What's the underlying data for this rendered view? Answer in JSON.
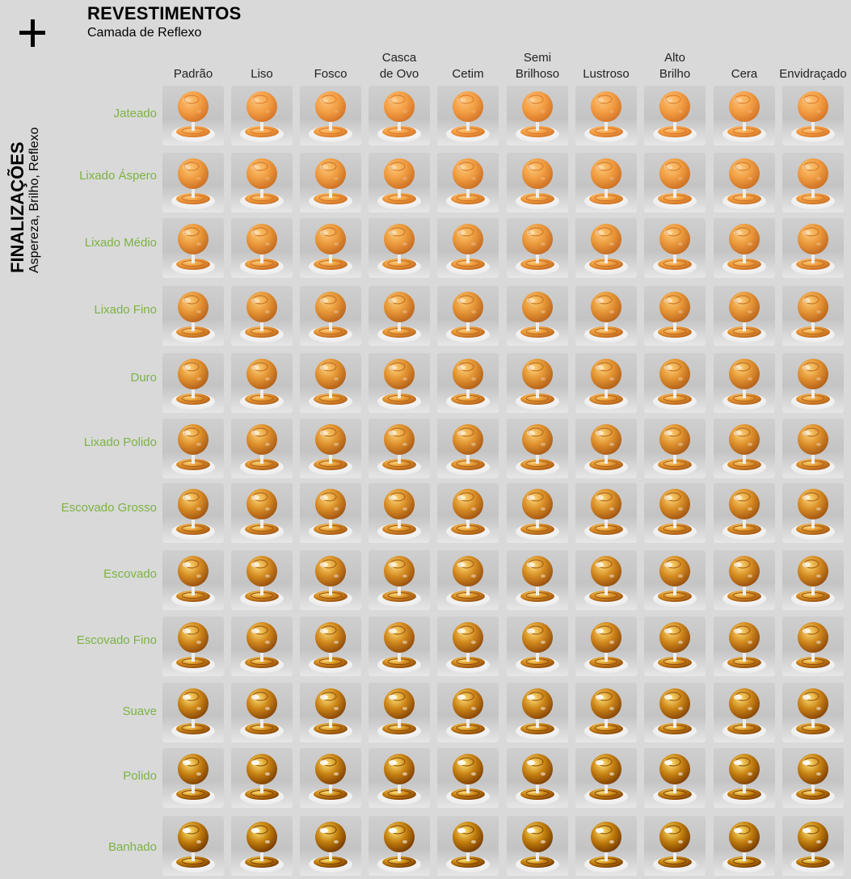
{
  "header": {
    "icon": "plus-icon",
    "title": "REVESTIMENTOS",
    "subtitle": "Camada de Reflexo"
  },
  "side": {
    "title": "FINALIZAÇÕES",
    "subtitle": "Aspereza, Brilho, Reflexo"
  },
  "columns": [
    "Padrão",
    "Liso",
    "Fosco",
    "Casca\nde Ovo",
    "Cetim",
    "Semi\nBrilhoso",
    "Lustroso",
    "Alto\nBrilho",
    "Cera",
    "Envidraçado"
  ],
  "rows": [
    "Jateado",
    "Lixado Áspero",
    "Lixado Médio",
    "Lixado Fino",
    "Duro",
    "Lixado Polido",
    "Escovado Grosso",
    "Escovado",
    "Escovado Fino",
    "Suave",
    "Polido",
    "Banhado"
  ],
  "colors": {
    "background": "#d9d9d9",
    "row_label": "#7cb342",
    "material_orange": "#f0a040",
    "material_gold": "#c8860a"
  }
}
